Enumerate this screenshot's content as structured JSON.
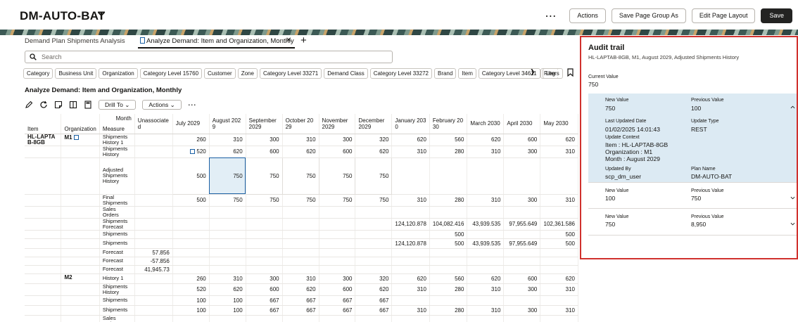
{
  "header": {
    "app_title": "DM-AUTO-BAT",
    "actions_label": "Actions",
    "save_page_group_as_label": "Save Page Group As",
    "edit_page_layout_label": "Edit Page Layout",
    "save_label": "Save"
  },
  "tabs": [
    {
      "label": "Demand Plan Shipments Analysis"
    },
    {
      "label": "Analyze Demand: Item and Organization, Monthly"
    }
  ],
  "search": {
    "placeholder": "Search"
  },
  "chips": [
    "Category",
    "Business Unit",
    "Organization",
    "Category Level 15760",
    "Customer",
    "Zone",
    "Category Level 33271",
    "Demand Class",
    "Category Level 33272",
    "Brand",
    "Item",
    "Category Level 34611",
    "Leg"
  ],
  "filters_label": "Filters",
  "section_title": "Analyze Demand: Item and Organization, Monthly",
  "toolbar": {
    "drill_to_label": "Drill To",
    "actions_label": "Actions"
  },
  "table": {
    "month_label": "Month",
    "item_header": "Item",
    "org_header": "Organization",
    "measure_header": "Measure",
    "months": [
      "Unassociated",
      "July 2029",
      "August 2029",
      "September 2029",
      "October 2029",
      "November 2029",
      "December 2029",
      "January 2030",
      "February 2030",
      "March 2030",
      "April 2030",
      "May 2030"
    ],
    "item": "HL-LAPTAB-8GB",
    "orgs": [
      "M1",
      "M2"
    ],
    "rows": [
      {
        "org": "M1",
        "measure": "Shipments History 1",
        "values": [
          "",
          "260",
          "310",
          "300",
          "310",
          "300",
          "320",
          "620",
          "560",
          "620",
          "600",
          "620"
        ]
      },
      {
        "org": "",
        "measure": "Shipments History",
        "values": [
          "",
          "520",
          "620",
          "600",
          "620",
          "600",
          "620",
          "310",
          "280",
          "310",
          "300",
          "310"
        ]
      },
      {
        "org": "",
        "measure": "Adjusted Shipments History",
        "values": [
          "",
          "500",
          "750",
          "750",
          "750",
          "750",
          "750",
          "",
          "",
          "",
          "",
          ""
        ]
      },
      {
        "org": "",
        "measure": "Final Shipments",
        "values": [
          "",
          "500",
          "750",
          "750",
          "750",
          "750",
          "750",
          "310",
          "280",
          "310",
          "300",
          "310"
        ]
      },
      {
        "org": "",
        "measure": "Sales Orders",
        "values": [
          "",
          "",
          "",
          "",
          "",
          "",
          "",
          "",
          "",
          "",
          "",
          ""
        ]
      },
      {
        "org": "",
        "measure": "Shipments Forecast",
        "values": [
          "",
          "",
          "",
          "",
          "",
          "",
          "",
          "124,120.878",
          "104,082.416",
          "43,939.535",
          "97,955.649",
          "102,361.586"
        ]
      },
      {
        "org": "",
        "measure": "Shipments",
        "values": [
          "",
          "",
          "",
          "",
          "",
          "",
          "",
          "",
          "500",
          "",
          "",
          "500"
        ]
      },
      {
        "org": "",
        "measure": "Shipments",
        "values": [
          "",
          "",
          "",
          "",
          "",
          "",
          "",
          "124,120.878",
          "500",
          "43,939.535",
          "97,955.649",
          "500"
        ]
      },
      {
        "org": "",
        "measure": "Forecast",
        "values": [
          "57.856",
          "",
          "",
          "",
          "",
          "",
          "",
          "",
          "",
          "",
          "",
          ""
        ]
      },
      {
        "org": "",
        "measure": "Forecast",
        "values": [
          "-57.856",
          "",
          "",
          "",
          "",
          "",
          "",
          "",
          "",
          "",
          "",
          ""
        ]
      },
      {
        "org": "",
        "measure": "Forecast",
        "values": [
          "41,945.73",
          "",
          "",
          "",
          "",
          "",
          "",
          "",
          "",
          "",
          "",
          ""
        ]
      },
      {
        "org": "M2",
        "measure": "History 1",
        "values": [
          "",
          "260",
          "310",
          "300",
          "310",
          "300",
          "320",
          "620",
          "560",
          "620",
          "600",
          "620"
        ]
      },
      {
        "org": "",
        "measure": "Shipments History",
        "values": [
          "",
          "520",
          "620",
          "600",
          "620",
          "600",
          "620",
          "310",
          "280",
          "310",
          "300",
          "310"
        ]
      },
      {
        "org": "",
        "measure": "Shipments",
        "values": [
          "",
          "100",
          "100",
          "667",
          "667",
          "667",
          "667",
          "",
          "",
          "",
          "",
          ""
        ]
      },
      {
        "org": "",
        "measure": "Shipments",
        "values": [
          "",
          "100",
          "100",
          "667",
          "667",
          "667",
          "667",
          "310",
          "280",
          "310",
          "300",
          "310"
        ]
      },
      {
        "org": "",
        "measure": "Sales Orders",
        "values": [
          "",
          "",
          "",
          "",
          "",
          "",
          "",
          "",
          "",
          "",
          "",
          ""
        ]
      }
    ]
  },
  "audit": {
    "title": "Audit trail",
    "subtitle": "HL-LAPTAB-8GB, M1, August 2029, Adjusted Shipments History",
    "current_value_label": "Current Value",
    "current_value": "750",
    "entries": [
      {
        "new_value_label": "New Value",
        "new_value": "750",
        "previous_value_label": "Previous Value",
        "previous_value": "100",
        "last_updated_label": "Last Updated Date",
        "last_updated": "01/02/2025 14:01:43",
        "update_type_label": "Update Type",
        "update_type": "REST",
        "context_label": "Update Context",
        "context_item": "Item : HL-LAPTAB-8GB",
        "context_org": "Organization : M1",
        "context_month": "Month : August 2029",
        "updated_by_label": "Updated By",
        "updated_by": "scp_dm_user",
        "plan_name_label": "Plan Name",
        "plan_name": "DM-AUTO-BAT"
      },
      {
        "new_value_label": "New Value",
        "new_value": "100",
        "previous_value_label": "Previous Value",
        "previous_value": "750"
      },
      {
        "new_value_label": "New Value",
        "new_value": "750",
        "previous_value_label": "Previous Value",
        "previous_value": "8,950"
      }
    ]
  },
  "colors": {
    "accent": "#1a5fa3",
    "highlight_border": "#d0312d",
    "selected_cell": "#e2eef6"
  }
}
